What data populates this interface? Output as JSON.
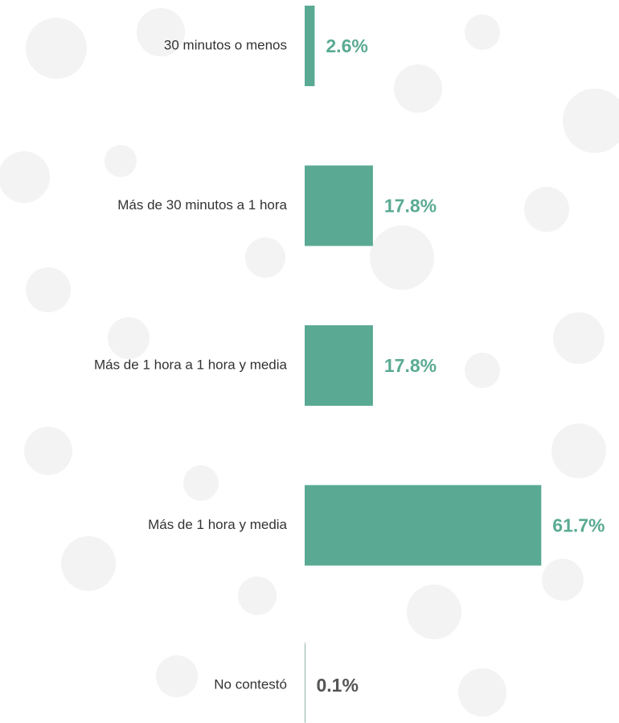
{
  "chart_data": {
    "type": "barh",
    "categories": [
      "30 minutos o menos",
      "Más de 30 minutos  a 1 hora",
      "Más de 1 hora  a 1 hora y media",
      "Más de 1 hora y media",
      "No contestó"
    ],
    "values": [
      2.6,
      17.8,
      17.8,
      61.7,
      0.1
    ],
    "value_labels": [
      "2.6%",
      "17.8%",
      "17.8%",
      "61.7%",
      "0.1%"
    ],
    "color": "#5aaa93",
    "value_label_colors": [
      "#5aaa93",
      "#5aaa93",
      "#5aaa93",
      "#5aaa93",
      "#555555"
    ]
  }
}
